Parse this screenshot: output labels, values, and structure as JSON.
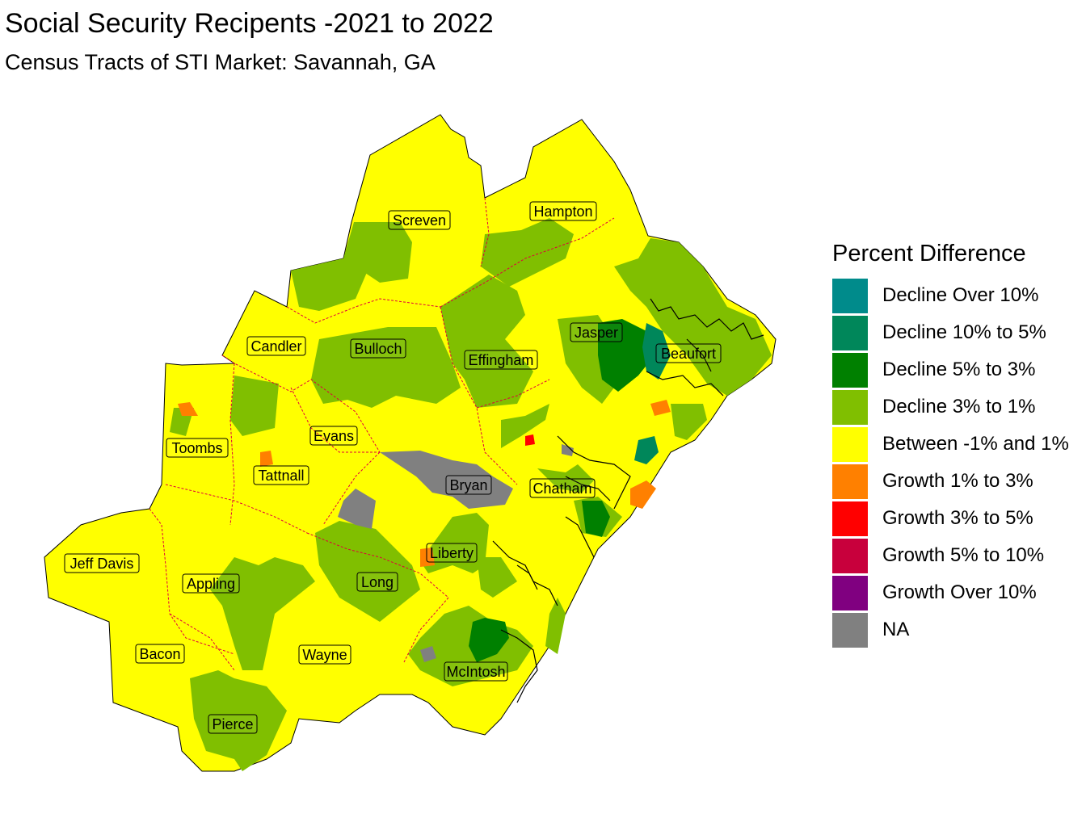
{
  "title": "Social Security Recipents -2021 to 2022",
  "subtitle": "Census Tracts of STI Market: Savannah, GA",
  "legend": {
    "title": "Percent Difference",
    "items": [
      {
        "label": "Decline Over 10%",
        "color": "#008B8B"
      },
      {
        "label": "Decline 10% to 5%",
        "color": "#00875A"
      },
      {
        "label": "Decline 5% to 3%",
        "color": "#008000"
      },
      {
        "label": "Decline 3% to 1%",
        "color": "#80BF00"
      },
      {
        "label": "Between -1% and 1%",
        "color": "#FFFF00"
      },
      {
        "label": "Growth 1% to 3%",
        "color": "#FF8000"
      },
      {
        "label": "Growth 3% to 5%",
        "color": "#FF0000"
      },
      {
        "label": "Growth 5% to 10%",
        "color": "#C8003C"
      },
      {
        "label": "Growth Over 10%",
        "color": "#800080"
      },
      {
        "label": "NA",
        "color": "#808080"
      }
    ]
  },
  "counties": {
    "screven": "Screven",
    "hampton": "Hampton",
    "candler": "Candler",
    "bulloch": "Bulloch",
    "effingham": "Effingham",
    "jasper": "Jasper",
    "beaufort": "Beaufort",
    "toombs": "Toombs",
    "evans": "Evans",
    "tattnall": "Tattnall",
    "bryan": "Bryan",
    "chatham": "Chatham",
    "jeff_davis": "Jeff Davis",
    "appling": "Appling",
    "liberty": "Liberty",
    "long": "Long",
    "bacon": "Bacon",
    "wayne": "Wayne",
    "mcintosh": "McIntosh",
    "pierce": "Pierce"
  }
}
